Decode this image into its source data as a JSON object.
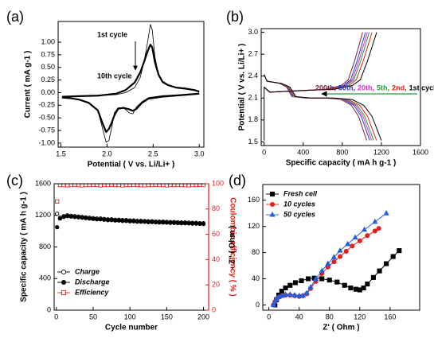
{
  "chart_data": [
    {
      "type": "line",
      "panel_label": "(a)",
      "xlabel": "Potential ( V vs. Li/Li+ )",
      "ylabel": "Current ( mA g-1 )",
      "xlim": [
        1.47,
        3.05
      ],
      "xticks": [
        1.5,
        {
          "value": 2,
          "label": "2.0"
        },
        2.5,
        {
          "value": 3,
          "label": "3.0"
        }
      ],
      "ylim": [
        -1.08,
        1.41
      ],
      "yticks": [
        {
          "value": -1,
          "label": "-1.00"
        },
        -0.75,
        {
          "value": -0.5,
          "label": "-0.50"
        },
        -0.25,
        {
          "value": 0,
          "label": "0.00"
        },
        0.25,
        {
          "value": 0.5,
          "label": "0.50"
        },
        0.75,
        {
          "value": 1,
          "label": "1.00"
        }
      ],
      "annotations": [
        "1st cycle",
        "10th cycle"
      ],
      "series": [
        {
          "color": "#000000",
          "width": 0.8,
          "x": [
            3.0,
            2.8,
            2.6,
            2.45,
            2.38,
            2.32,
            2.28,
            2.24,
            2.18,
            2.12,
            2.08,
            2.05,
            2.02,
            1.99,
            1.95,
            1.9,
            1.8,
            1.7,
            1.6,
            1.52,
            1.52,
            1.7,
            1.9,
            2.1,
            2.2,
            2.3,
            2.36,
            2.4,
            2.44,
            2.47,
            2.49,
            2.52,
            2.56,
            2.6,
            2.66,
            2.75,
            2.85,
            2.95,
            3.0
          ],
          "values": [
            -0.02,
            -0.04,
            -0.06,
            -0.1,
            -0.18,
            -0.28,
            -0.42,
            -0.4,
            -0.3,
            -0.3,
            -0.4,
            -0.7,
            -0.95,
            -0.98,
            -0.7,
            -0.35,
            -0.2,
            -0.14,
            -0.11,
            -0.1,
            -0.08,
            -0.07,
            -0.06,
            -0.04,
            0.0,
            0.1,
            0.3,
            0.6,
            1.0,
            1.35,
            1.25,
            0.7,
            0.35,
            0.2,
            0.14,
            0.1,
            0.08,
            0.05,
            0.02
          ]
        },
        {
          "color": "#000000",
          "width": 2.2,
          "x": [
            3.0,
            2.8,
            2.6,
            2.45,
            2.38,
            2.32,
            2.28,
            2.24,
            2.18,
            2.12,
            2.08,
            2.05,
            2.02,
            1.99,
            1.95,
            1.9,
            1.8,
            1.7,
            1.6,
            1.52,
            1.52,
            1.7,
            1.9,
            2.1,
            2.2,
            2.3,
            2.36,
            2.4,
            2.44,
            2.47,
            2.49,
            2.52,
            2.56,
            2.6,
            2.66,
            2.75,
            2.85,
            2.95,
            3.0
          ],
          "values": [
            -0.02,
            -0.05,
            -0.08,
            -0.12,
            -0.2,
            -0.32,
            -0.36,
            -0.33,
            -0.3,
            -0.32,
            -0.45,
            -0.6,
            -0.72,
            -0.78,
            -0.6,
            -0.35,
            -0.2,
            -0.14,
            -0.11,
            -0.1,
            -0.08,
            -0.07,
            -0.06,
            -0.02,
            0.05,
            0.2,
            0.4,
            0.6,
            0.82,
            0.95,
            0.9,
            0.6,
            0.35,
            0.22,
            0.15,
            0.1,
            0.08,
            0.05,
            0.02
          ]
        }
      ]
    },
    {
      "type": "line",
      "panel_label": "(b)",
      "xlabel": "Specific capacity ( mA h g-1 )",
      "ylabel": "Potential ( V vs. Li/Li+ )",
      "xlim": [
        -30,
        1600
      ],
      "xticks": [
        0,
        400,
        800,
        1200,
        1600
      ],
      "ylim": [
        1.45,
        3.05
      ],
      "yticks": [
        1.5,
        1.8,
        2.1,
        2.4,
        2.7,
        {
          "value": 3,
          "label": "3.0"
        }
      ],
      "legend": "text-row",
      "series": [
        {
          "name": "200th,",
          "color": "#7b1e3c",
          "width": 1,
          "x": [
            0,
            30,
            158,
            231,
            284,
            420,
            630,
            788,
            893,
            966,
            1050,
            null,
            0,
            53,
            315,
            630,
            788,
            861,
            924,
            977,
            1008
          ],
          "values": [
            2.42,
            2.33,
            2.3,
            2.25,
            2.12,
            2.1,
            2.1,
            2.08,
            2.0,
            1.85,
            1.52,
            null,
            2.25,
            2.18,
            2.2,
            2.22,
            2.27,
            2.35,
            2.6,
            2.85,
            3.0
          ]
        },
        {
          "name": "50th,",
          "color": "#1f3fd0",
          "width": 1,
          "x": [
            0,
            30,
            162,
            238,
            292,
            432,
            648,
            810,
            918,
            994,
            1080,
            null,
            0,
            54,
            324,
            648,
            810,
            886,
            950,
            1004,
            1037
          ],
          "values": [
            2.42,
            2.33,
            2.3,
            2.25,
            2.12,
            2.1,
            2.1,
            2.08,
            2.0,
            1.85,
            1.52,
            null,
            2.25,
            2.18,
            2.2,
            2.22,
            2.27,
            2.35,
            2.6,
            2.85,
            3.0
          ]
        },
        {
          "name": "20th,",
          "color": "#d62fd6",
          "width": 1,
          "x": [
            0,
            30,
            165,
            242,
            297,
            440,
            660,
            825,
            935,
            1012,
            1100,
            null,
            0,
            55,
            330,
            660,
            825,
            902,
            968,
            1023,
            1056
          ],
          "values": [
            2.42,
            2.33,
            2.3,
            2.25,
            2.12,
            2.1,
            2.1,
            2.08,
            2.0,
            1.85,
            1.52,
            null,
            2.25,
            2.18,
            2.2,
            2.22,
            2.27,
            2.35,
            2.6,
            2.85,
            3.0
          ]
        },
        {
          "name": "5th,",
          "color": "#1e9e3a",
          "width": 1,
          "x": [
            0,
            30,
            168,
            246,
            302,
            448,
            672,
            840,
            952,
            1030,
            1120,
            null,
            0,
            56,
            336,
            672,
            840,
            918,
            986,
            1042,
            1075
          ],
          "values": [
            2.42,
            2.33,
            2.3,
            2.25,
            2.12,
            2.1,
            2.1,
            2.08,
            2.0,
            1.85,
            1.52,
            null,
            2.25,
            2.18,
            2.2,
            2.22,
            2.27,
            2.35,
            2.6,
            2.85,
            3.0
          ]
        },
        {
          "name": "2nd,",
          "color": "#e0201b",
          "width": 1,
          "x": [
            0,
            30,
            173,
            253,
            311,
            460,
            690,
            863,
            978,
            1058,
            1150,
            null,
            0,
            58,
            345,
            690,
            863,
            943,
            1012,
            1070,
            1104
          ],
          "values": [
            2.42,
            2.33,
            2.3,
            2.25,
            2.12,
            2.1,
            2.1,
            2.08,
            2.0,
            1.85,
            1.52,
            null,
            2.25,
            2.18,
            2.2,
            2.22,
            2.27,
            2.35,
            2.6,
            2.85,
            3.0
          ]
        },
        {
          "name": "1st cycle",
          "color": "#000000",
          "width": 1,
          "x": [
            0,
            30,
            180,
            264,
            324,
            480,
            720,
            900,
            1020,
            1104,
            1200,
            null,
            0,
            0,
            60,
            360,
            720,
            900,
            984,
            1056,
            1116,
            1152
          ],
          "values": [
            2.42,
            2.33,
            2.3,
            2.25,
            2.12,
            2.1,
            2.1,
            2.08,
            2.0,
            1.85,
            1.52,
            null,
            1.52,
            2.25,
            2.18,
            2.2,
            2.22,
            2.27,
            2.35,
            2.6,
            2.85,
            3.0
          ]
        }
      ]
    },
    {
      "type": "scatter",
      "panel_label": "(c)",
      "xlabel": "Cycle number",
      "ylabel": "Specific capacity ( mA h g-1 )",
      "y2label": "Coulombic efficiency ( % )",
      "y2color": "#e0201b",
      "xlim": [
        -3,
        207
      ],
      "xticks": [
        0,
        50,
        100,
        150,
        200
      ],
      "ylim": [
        0,
        1600
      ],
      "yticks": [
        0,
        400,
        800,
        1200,
        1600
      ],
      "y2lim": [
        0,
        100
      ],
      "y2ticks": [
        0,
        20,
        40,
        60,
        80,
        100
      ],
      "legend": "lower left",
      "x": [
        1,
        5,
        10,
        15,
        20,
        25,
        30,
        35,
        40,
        45,
        50,
        55,
        60,
        65,
        70,
        75,
        80,
        85,
        90,
        95,
        100,
        105,
        110,
        115,
        120,
        125,
        130,
        135,
        140,
        145,
        150,
        155,
        160,
        165,
        170,
        175,
        180,
        185,
        190,
        195,
        200
      ],
      "series": [
        {
          "name": "Charge",
          "color": "#000000",
          "marker": "circle",
          "filled": false,
          "values": [
            1220,
            1170,
            1190,
            1200,
            1195,
            1190,
            1185,
            1180,
            1175,
            1170,
            1165,
            1160,
            1160,
            1155,
            1150,
            1150,
            1145,
            1145,
            1140,
            1140,
            1135,
            1135,
            1130,
            1130,
            1128,
            1125,
            1125,
            1122,
            1120,
            1120,
            1118,
            1115,
            1115,
            1112,
            1110,
            1110,
            1108,
            1105,
            1105,
            1102,
            1100
          ]
        },
        {
          "name": "Discharge",
          "color": "#000000",
          "marker": "circle",
          "filled": true,
          "values": [
            1050,
            1160,
            1180,
            1190,
            1185,
            1180,
            1175,
            1170,
            1165,
            1160,
            1155,
            1150,
            1150,
            1145,
            1140,
            1140,
            1135,
            1135,
            1130,
            1130,
            1125,
            1125,
            1120,
            1120,
            1118,
            1115,
            1115,
            1112,
            1110,
            1110,
            1108,
            1105,
            1105,
            1102,
            1100,
            1100,
            1098,
            1095,
            1095,
            1092,
            1090
          ]
        },
        {
          "name": "Efficiency",
          "color": "#e0201b",
          "marker": "square",
          "filled": false,
          "axis": "y2",
          "values": [
            86,
            99,
            99,
            98.8,
            99,
            99.2,
            99,
            98.8,
            99,
            99,
            99.2,
            99,
            98.8,
            99,
            99,
            99.2,
            99,
            99,
            98.8,
            99,
            99,
            99.2,
            99,
            99,
            98.8,
            99,
            99,
            99.2,
            99,
            99,
            98.8,
            99,
            99,
            99.2,
            99,
            99,
            98.8,
            99,
            99,
            99.2,
            99
          ]
        }
      ]
    },
    {
      "type": "line",
      "panel_label": "(d)",
      "xlabel": "Z' ( Ohm )",
      "ylabel": "- Z'' ( Ohm )",
      "xlim": [
        -8,
        199
      ],
      "xticks": [
        0,
        40,
        80,
        120,
        160
      ],
      "ylim": [
        -8,
        184
      ],
      "yticks": [
        0,
        40,
        80,
        120,
        160
      ],
      "legend": "upper left",
      "series": [
        {
          "name": "Fresh cell",
          "color": "#000000",
          "marker": "square",
          "filled": true,
          "width": 1,
          "x": [
            8,
            10,
            13,
            17,
            22,
            28,
            35,
            43,
            52,
            60,
            70,
            80,
            90,
            100,
            108,
            115,
            120,
            125,
            130,
            138,
            146,
            155,
            164,
            172
          ],
          "values": [
            0,
            8,
            15,
            21,
            26,
            30,
            34,
            37,
            40,
            41,
            40,
            38,
            35,
            30,
            26,
            24,
            23,
            26,
            32,
            42,
            52,
            63,
            74,
            83
          ]
        },
        {
          "name": "10 cycles",
          "color": "#e0201b",
          "marker": "circle",
          "filled": true,
          "width": 1,
          "x": [
            6,
            8,
            10,
            13,
            17,
            22,
            28,
            34,
            40,
            45,
            50,
            55,
            62,
            70,
            78,
            86,
            94,
            102,
            110,
            120,
            130,
            140,
            145
          ],
          "values": [
            0,
            5,
            9,
            12,
            14,
            15,
            15,
            14,
            13,
            14,
            17,
            25,
            36,
            48,
            58,
            66,
            74,
            82,
            90,
            98,
            106,
            113,
            117
          ]
        },
        {
          "name": "50 cycles",
          "color": "#1f5fe0",
          "marker": "triangle",
          "filled": true,
          "width": 1,
          "x": [
            6,
            8,
            10,
            13,
            17,
            22,
            28,
            34,
            40,
            45,
            50,
            55,
            62,
            70,
            78,
            86,
            94,
            104,
            114,
            126,
            140,
            155
          ],
          "values": [
            0,
            5,
            9,
            12,
            14,
            16,
            16,
            15,
            14,
            14,
            18,
            27,
            40,
            52,
            63,
            73,
            83,
            93,
            103,
            115,
            127,
            140
          ]
        }
      ]
    }
  ]
}
